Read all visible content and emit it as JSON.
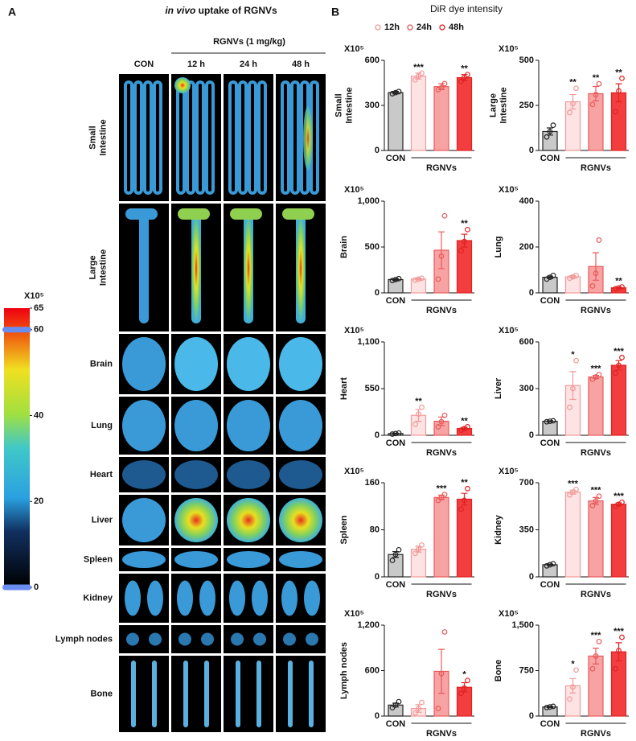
{
  "panel_a": {
    "letter": "A",
    "title_italic": "in vivo",
    "title_rest": "uptake of RGNVs",
    "group_label": "RGNVs (1 mg/kg)",
    "columns": [
      "CON",
      "12 h",
      "24 h",
      "48 h"
    ],
    "rows": [
      "Small\nIntestine",
      "Large\nIntestine",
      "Brain",
      "Lung",
      "Heart",
      "Liver",
      "Spleen",
      "Kidney",
      "Lymph nodes",
      "Bone"
    ],
    "colorbar": {
      "unit_label": "X10⁵",
      "lim": [
        0,
        65
      ],
      "ticks": [
        0,
        20,
        40,
        60,
        65
      ],
      "handles": [
        60,
        0
      ]
    }
  },
  "panel_b": {
    "letter": "B",
    "title": "DiR dye intensity",
    "legend": [
      "12h",
      "24h",
      "48h"
    ],
    "fill_colors": [
      "#c9c9c9",
      "#fde3e3",
      "#f7a3a3",
      "#f23e3e"
    ],
    "edge_colors": [
      "#222222",
      "#f29a9a",
      "#e85a5a",
      "#e02222"
    ]
  },
  "chart_data": [
    {
      "type": "bar",
      "ylabel": "Small\nIntestine",
      "unit_label": "X10⁵",
      "categories": [
        "CON",
        null,
        null,
        null
      ],
      "group_label": "RGNVs",
      "values": [
        385,
        495,
        425,
        485
      ],
      "errors": [
        8,
        20,
        20,
        20
      ],
      "points": [
        [
          378,
          385,
          392
        ],
        [
          470,
          495,
          515
        ],
        [
          405,
          420,
          445
        ],
        [
          460,
          485,
          505
        ]
      ],
      "annotations": [
        null,
        "***",
        null,
        "**"
      ],
      "ylim": [
        0,
        600
      ],
      "yticks": [
        0,
        300,
        600
      ]
    },
    {
      "type": "bar",
      "ylabel": "Large\nIntestine",
      "unit_label": "X10⁵",
      "categories": [
        "CON",
        null,
        null,
        null
      ],
      "group_label": "RGNVs",
      "values": [
        105,
        270,
        315,
        320
      ],
      "errors": [
        20,
        40,
        40,
        50
      ],
      "points": [
        [
          75,
          105,
          140
        ],
        [
          210,
          260,
          345
        ],
        [
          255,
          310,
          370
        ],
        [
          215,
          330,
          400
        ]
      ],
      "annotations": [
        null,
        "**",
        "**",
        "**"
      ],
      "ylim": [
        0,
        500
      ],
      "yticks": [
        0,
        250,
        500
      ]
    },
    {
      "type": "bar",
      "ylabel": "Brain",
      "unit_label": "X10⁵",
      "categories": [
        "CON",
        null,
        null,
        null
      ],
      "group_label": "RGNVs",
      "values": [
        145,
        150,
        465,
        570
      ],
      "errors": [
        10,
        10,
        200,
        70
      ],
      "points": [
        [
          135,
          145,
          155
        ],
        [
          140,
          150,
          160
        ],
        [
          150,
          400,
          840
        ],
        [
          460,
          560,
          690
        ]
      ],
      "annotations": [
        null,
        null,
        null,
        "**"
      ],
      "ylim": [
        0,
        1000
      ],
      "yticks": [
        0,
        500,
        {
          "value": 1000,
          "label": "1,000"
        }
      ]
    },
    {
      "type": "bar",
      "ylabel": "Lung",
      "unit_label": "X10⁵",
      "categories": [
        "CON",
        null,
        null,
        null
      ],
      "group_label": "RGNVs",
      "values": [
        68,
        70,
        115,
        22
      ],
      "errors": [
        5,
        5,
        60,
        3
      ],
      "points": [
        [
          60,
          68,
          76
        ],
        [
          64,
          70,
          76
        ],
        [
          30,
          85,
          230
        ],
        [
          18,
          22,
          26
        ]
      ],
      "annotations": [
        null,
        null,
        null,
        "**"
      ],
      "ylim": [
        0,
        400
      ],
      "yticks": [
        0,
        200,
        400
      ]
    },
    {
      "type": "bar",
      "ylabel": "Heart",
      "unit_label": "X10⁵",
      "categories": [
        "CON",
        null,
        null,
        null
      ],
      "group_label": "RGNVs",
      "values": [
        20,
        235,
        165,
        80
      ],
      "errors": [
        5,
        70,
        50,
        15
      ],
      "points": [
        [
          14,
          20,
          26
        ],
        [
          130,
          250,
          330
        ],
        [
          100,
          160,
          235
        ],
        [
          60,
          78,
          100
        ]
      ],
      "annotations": [
        null,
        "**",
        null,
        "**"
      ],
      "ylim": [
        0,
        1100
      ],
      "yticks": [
        0,
        550,
        {
          "value": 1100,
          "label": "1,100"
        }
      ]
    },
    {
      "type": "bar",
      "ylabel": "Liver",
      "unit_label": "X10⁵",
      "categories": [
        "CON",
        null,
        null,
        null
      ],
      "group_label": "RGNVs",
      "values": [
        90,
        320,
        375,
        450
      ],
      "errors": [
        3,
        90,
        10,
        30
      ],
      "points": [
        [
          87,
          90,
          93
        ],
        [
          180,
          300,
          480
        ],
        [
          360,
          375,
          390
        ],
        [
          400,
          450,
          500
        ]
      ],
      "annotations": [
        null,
        "*",
        "***",
        "***"
      ],
      "ylim": [
        0,
        600
      ],
      "yticks": [
        0,
        300,
        600
      ]
    },
    {
      "type": "bar",
      "ylabel": "Spleen",
      "unit_label": "X10⁵",
      "categories": [
        "CON",
        null,
        null,
        null
      ],
      "group_label": "RGNVs",
      "values": [
        38,
        47,
        135,
        132
      ],
      "errors": [
        5,
        5,
        4,
        10
      ],
      "points": [
        [
          28,
          38,
          46
        ],
        [
          40,
          47,
          54
        ],
        [
          130,
          135,
          140
        ],
        [
          115,
          130,
          150
        ]
      ],
      "annotations": [
        null,
        null,
        "***",
        "**"
      ],
      "ylim": [
        0,
        160
      ],
      "yticks": [
        0,
        80,
        160
      ]
    },
    {
      "type": "bar",
      "ylabel": "Kidney",
      "unit_label": "X10⁵",
      "categories": [
        "CON",
        null,
        null,
        null
      ],
      "group_label": "RGNVs",
      "values": [
        90,
        630,
        565,
        540
      ],
      "errors": [
        5,
        15,
        25,
        10
      ],
      "points": [
        [
          82,
          90,
          98
        ],
        [
          610,
          630,
          650
        ],
        [
          530,
          565,
          600
        ],
        [
          525,
          540,
          555
        ]
      ],
      "annotations": [
        null,
        "***",
        "***",
        "***"
      ],
      "ylim": [
        0,
        700
      ],
      "yticks": [
        0,
        350,
        700
      ]
    },
    {
      "type": "bar",
      "ylabel": "Lymph nodes",
      "unit_label": "X10⁵",
      "categories": [
        "CON",
        null,
        null,
        null
      ],
      "group_label": "RGNVs",
      "values": [
        145,
        100,
        590,
        380
      ],
      "errors": [
        25,
        50,
        290,
        60
      ],
      "points": [
        [
          110,
          145,
          190
        ],
        [
          40,
          100,
          180
        ],
        [
          100,
          560,
          1110
        ],
        [
          300,
          370,
          470
        ]
      ],
      "annotations": [
        null,
        null,
        null,
        "*"
      ],
      "ylim": [
        0,
        1200
      ],
      "yticks": [
        0,
        600,
        {
          "value": 1200,
          "label": "1,200"
        }
      ]
    },
    {
      "type": "bar",
      "ylabel": "Bone",
      "unit_label": "X10⁵",
      "categories": [
        "CON",
        null,
        null,
        null
      ],
      "group_label": "RGNVs",
      "values": [
        150,
        500,
        990,
        1060
      ],
      "errors": [
        10,
        120,
        130,
        150
      ],
      "points": [
        [
          140,
          150,
          160
        ],
        [
          280,
          480,
          760
        ],
        [
          780,
          990,
          1230
        ],
        [
          780,
          1080,
          1300
        ]
      ],
      "annotations": [
        null,
        "*",
        "***",
        "***"
      ],
      "ylim": [
        0,
        1500
      ],
      "yticks": [
        0,
        750,
        {
          "value": 1500,
          "label": "1,500"
        }
      ]
    }
  ]
}
